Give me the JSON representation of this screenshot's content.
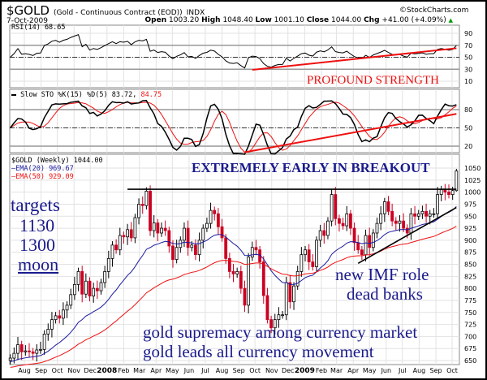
{
  "header": {
    "symbol": "$GOLD",
    "name": "(Gold - Continuous Contract (EOD))",
    "exchange": "INDX",
    "credit": "©StockCharts.com",
    "date": "7-Oct-2009",
    "open_label": "Open",
    "open": "1003.20",
    "high_label": "High",
    "high": "1048.40",
    "low_label": "Low",
    "low": "1001.10",
    "close_label": "Close",
    "close": "1044.00",
    "chg_label": "Chg",
    "chg": "+41.00 (+4.09%)"
  },
  "colors": {
    "up": "#000000",
    "down": "#cc0022",
    "ema20": "#1a1aa0",
    "ema50": "#ee1111",
    "annotation_blue": "#1a1a8c",
    "annotation_red": "#ee1111",
    "up_arrow": "#009900"
  },
  "chart_data": {
    "type": "candlestick",
    "title": "$GOLD (Weekly) 1044.00",
    "x_tick_labels": [
      "Aug",
      "Sep",
      "Oct",
      "Nov",
      "Dec",
      "2008",
      "Feb",
      "Mar",
      "Apr",
      "May",
      "Jun",
      "Jul",
      "Aug",
      "Sep",
      "Oct",
      "Nov",
      "Dec",
      "2009",
      "Feb",
      "Mar",
      "Apr",
      "May",
      "Jun",
      "Jul",
      "Aug",
      "Sep",
      "Oct"
    ],
    "first_week": "2007-07-06",
    "closes": [
      655,
      665,
      683,
      668,
      670,
      668,
      665,
      672,
      673,
      705,
      715,
      735,
      743,
      738,
      755,
      765,
      787,
      808,
      835,
      788,
      815,
      784,
      800,
      795,
      812,
      835,
      862,
      890,
      880,
      910,
      907,
      922,
      905,
      947,
      975,
      972,
      1002,
      920,
      936,
      915,
      925,
      920,
      888,
      860,
      885,
      900,
      925,
      885,
      890,
      870,
      900,
      925,
      935,
      962,
      955,
      928,
      905,
      862,
      835,
      830,
      835,
      800,
      765,
      865,
      885,
      880,
      855,
      785,
      735,
      718,
      735,
      745,
      745,
      812,
      772,
      805,
      835,
      870,
      880,
      855,
      845,
      900,
      920,
      910,
      940,
      995,
      945,
      935,
      930,
      955,
      925,
      895,
      880,
      870,
      910,
      885,
      915,
      935,
      955,
      980,
      960,
      940,
      935,
      940,
      925,
      915,
      955,
      950,
      955,
      960,
      950,
      955,
      955,
      995,
      1005,
      1000,
      995,
      1003.2,
      1044
    ],
    "last_bar": {
      "open": 1003.2,
      "high": 1048.4,
      "low": 1001.1,
      "close": 1044.0
    },
    "y_ticks": [
      1050,
      1025,
      1000,
      975,
      950,
      925,
      900,
      875,
      850,
      825,
      800,
      775,
      750,
      725,
      700,
      675,
      650
    ],
    "ylim": [
      650,
      1050
    ],
    "grid": true,
    "legend": [
      {
        "label": "$GOLD (Weekly) 1044.00"
      },
      {
        "label": "EMA(20) 969.67",
        "period": 20
      },
      {
        "label": "EMA(50) 929.09",
        "period": 50
      }
    ],
    "indicators": [
      {
        "name": "RSI(14) 68.65",
        "type": "rsi",
        "period": 14,
        "y_ticks": [
          90,
          70,
          50,
          30,
          10
        ],
        "ylim": [
          0,
          100
        ],
        "levels": [
          70,
          50,
          30
        ]
      },
      {
        "name": "Slow STO %K(15) %D(5) 83.72,",
        "d_value": "84.75",
        "type": "stochastic",
        "k": 15,
        "d": 5,
        "y_ticks": [
          80,
          50,
          20
        ],
        "ylim": [
          0,
          100
        ],
        "levels": [
          80,
          50,
          20
        ]
      }
    ],
    "trendlines": [
      {
        "panel": "price",
        "color": "#000000",
        "from": [
          "2008-02-08",
          1006
        ],
        "to": [
          "2009-10-09",
          1006
        ]
      },
      {
        "panel": "price",
        "color": "#000000",
        "from": [
          "2009-04-10",
          852
        ],
        "to": [
          "2009-10-09",
          968
        ]
      },
      {
        "panel": "rsi",
        "color": "#ee1111",
        "from": [
          "2008-09-26",
          29
        ],
        "to": [
          "2009-10-09",
          65
        ]
      },
      {
        "panel": "sto",
        "color": "#ee1111",
        "from": [
          "2008-09-12",
          10
        ],
        "to": [
          "2009-10-09",
          73
        ]
      }
    ],
    "annotations": {
      "profound": "PROFOUND STRENGTH",
      "breakout": "EXTREMELY EARLY IN BREAKOUT",
      "targets": "targets",
      "t1": "1130",
      "t2": "1300",
      "t3": "moon",
      "imf1": "new IMF role",
      "imf2": "dead banks",
      "gold1": "gold supremacy among currency market",
      "gold2": "gold leads all currency movement"
    }
  }
}
